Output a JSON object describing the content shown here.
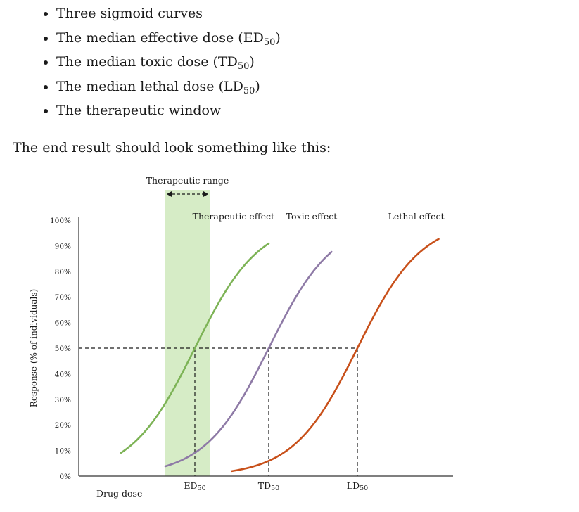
{
  "bullets": [
    {
      "text": "Three sigmoid curves",
      "sub": "",
      "tail": ""
    },
    {
      "text": "The median effective dose (ED",
      "sub": "50",
      "tail": ")"
    },
    {
      "text": "The median toxic dose (TD",
      "sub": "50",
      "tail": ")"
    },
    {
      "text": "The median lethal dose (LD",
      "sub": "50",
      "tail": ")"
    },
    {
      "text": "The therapeutic window",
      "sub": "",
      "tail": ""
    }
  ],
  "intro": "The end result should look something like this:",
  "chart_data": {
    "type": "line",
    "title": "",
    "xlabel": "Drug dose",
    "ylabel": "Response (% of individuals)",
    "ylim": [
      0,
      100
    ],
    "yticks": [
      "0%",
      "10%",
      "20%",
      "30%",
      "40%",
      "50%",
      "60%",
      "70%",
      "80%",
      "90%",
      "100%"
    ],
    "grid": false,
    "series": [
      {
        "name": "Therapeutic effect",
        "color": "#7db356",
        "mid": 1.0,
        "start": 0.0,
        "end": 2.0
      },
      {
        "name": "Toxic effect",
        "color": "#8e7aa6",
        "mid": 2.0,
        "start": 0.6,
        "end": 2.85
      },
      {
        "name": "Lethal effect",
        "color": "#c8501a",
        "mid": 3.2,
        "start": 1.5,
        "end": 4.3
      }
    ],
    "markers": [
      {
        "label": "ED",
        "sub": "50",
        "x": 1.0,
        "y": 50
      },
      {
        "label": "TD",
        "sub": "50",
        "x": 2.0,
        "y": 50
      },
      {
        "label": "LD",
        "sub": "50",
        "x": 3.2,
        "y": 50
      }
    ],
    "therapeutic_range": {
      "label": "Therapeutic range",
      "x_start": 0.6,
      "x_end": 1.2,
      "color": "#d6ecc6"
    }
  }
}
